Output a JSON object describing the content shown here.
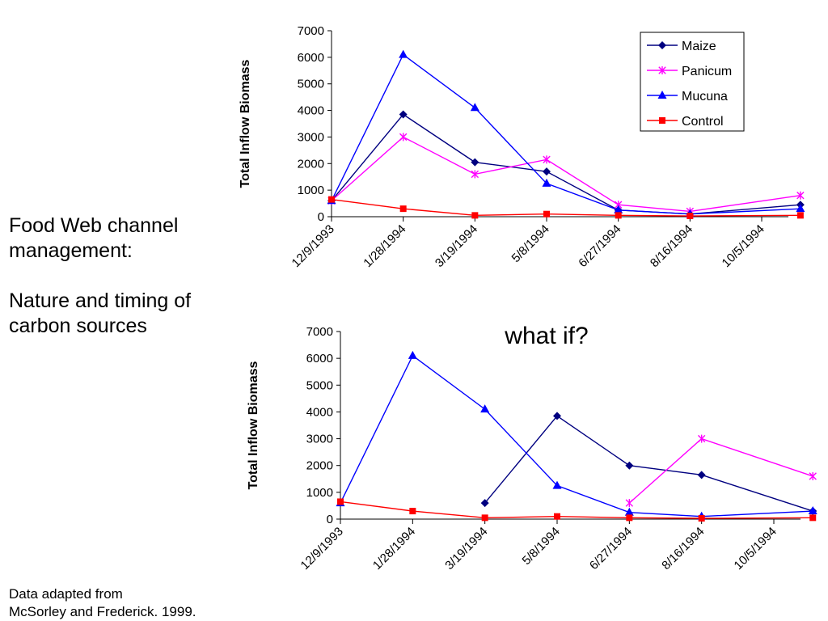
{
  "side_panel": {
    "line1": "Food Web channel management:",
    "line2": "Nature and timing of carbon sources"
  },
  "footnote": {
    "line1": "Data adapted from",
    "line2": "McSorley and Frederick. 1999."
  },
  "series_colors": {
    "Maize": "#000080",
    "Panicum": "#ff00ff",
    "Mucuna": "#0000ff",
    "Control": "#ff0000"
  },
  "series_markers": {
    "Maize": "diamond",
    "Panicum": "star",
    "Mucuna": "triangle",
    "Control": "square"
  },
  "chart_data": [
    {
      "type": "line",
      "title": "",
      "xlabel": "",
      "ylabel": "Total Inflow Biomass",
      "ylim": [
        0,
        7000
      ],
      "yticks": [
        0,
        1000,
        2000,
        3000,
        4000,
        5000,
        6000,
        7000
      ],
      "xticks": [
        "12/9/1993",
        "1/28/1994",
        "3/19/1994",
        "5/8/1994",
        "6/27/1994",
        "8/16/1994",
        "10/5/1994"
      ],
      "x": [
        "12/9/1993",
        "1/28/1994",
        "3/19/1994",
        "5/8/1994",
        "6/27/1994",
        "8/16/1994",
        "11/1/1994"
      ],
      "legend": "top-right",
      "grid": false,
      "series": [
        {
          "name": "Maize",
          "values": [
            600,
            3850,
            2050,
            1700,
            250,
            100,
            450
          ]
        },
        {
          "name": "Panicum",
          "values": [
            600,
            3000,
            1600,
            2150,
            450,
            200,
            800
          ]
        },
        {
          "name": "Mucuna",
          "values": [
            600,
            6100,
            4100,
            1250,
            250,
            100,
            300
          ]
        },
        {
          "name": "Control",
          "values": [
            650,
            300,
            50,
            100,
            50,
            30,
            50
          ]
        }
      ]
    },
    {
      "type": "line",
      "title": "what if?",
      "xlabel": "",
      "ylabel": "Total Inflow Biomass",
      "ylim": [
        0,
        7000
      ],
      "yticks": [
        0,
        1000,
        2000,
        3000,
        4000,
        5000,
        6000,
        7000
      ],
      "xticks": [
        "12/9/1993",
        "1/28/1994",
        "3/19/1994",
        "5/8/1994",
        "6/27/1994",
        "8/16/1994",
        "10/5/1994"
      ],
      "x": [
        "12/9/1993",
        "1/28/1994",
        "3/19/1994",
        "5/8/1994",
        "6/27/1994",
        "8/16/1994",
        "11/1/1994"
      ],
      "legend": "none",
      "grid": false,
      "series": [
        {
          "name": "Maize",
          "values": [
            null,
            null,
            600,
            3850,
            2000,
            1650,
            300
          ]
        },
        {
          "name": "Panicum",
          "values": [
            null,
            null,
            null,
            null,
            600,
            3000,
            1600
          ]
        },
        {
          "name": "Mucuna",
          "values": [
            600,
            6100,
            4100,
            1250,
            250,
            100,
            300
          ]
        },
        {
          "name": "Control",
          "values": [
            650,
            300,
            50,
            100,
            50,
            30,
            50
          ]
        }
      ]
    }
  ]
}
